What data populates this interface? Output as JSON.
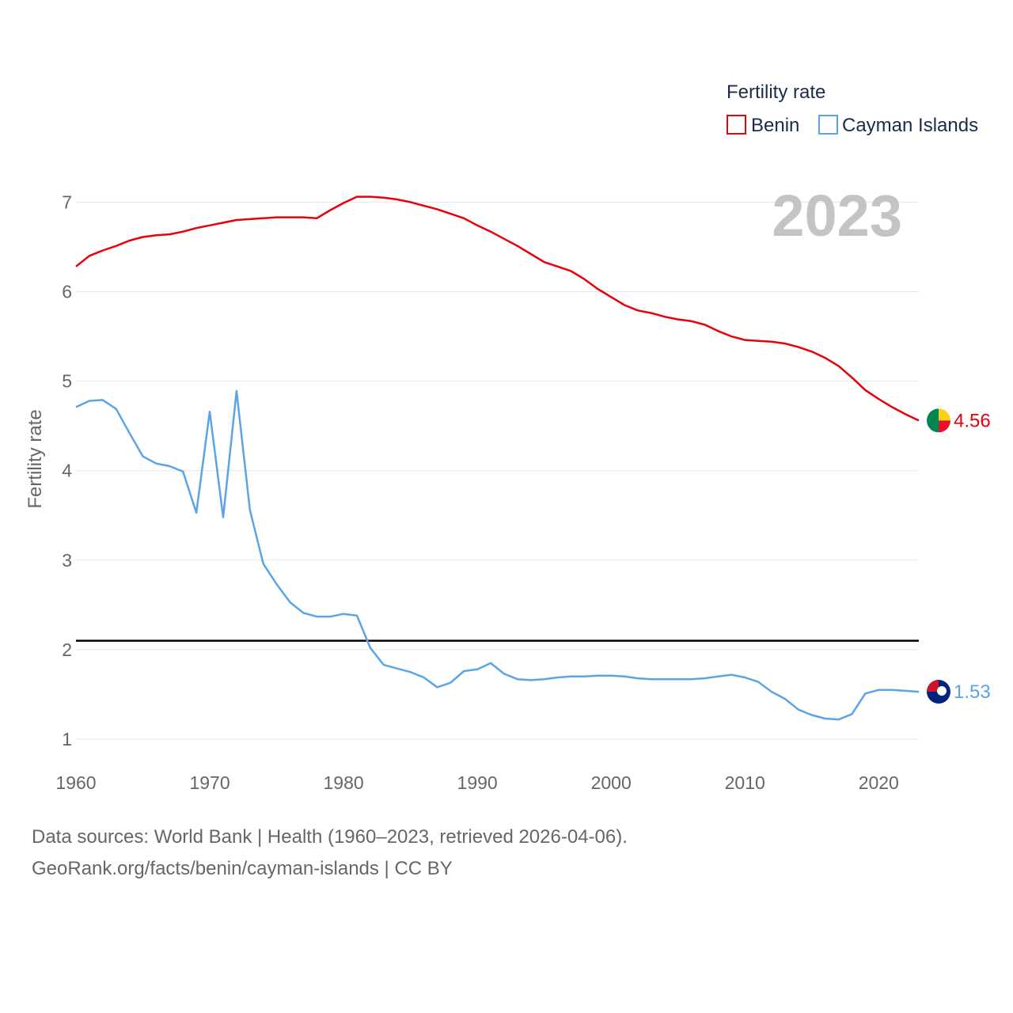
{
  "chart_data": {
    "type": "line",
    "ylabel": "Fertility rate",
    "legend_title": "Fertility rate",
    "year_label": "2023",
    "x_ticks": [
      "1960",
      "1970",
      "1980",
      "1990",
      "2000",
      "2010",
      "2020"
    ],
    "y_ticks": [
      "1",
      "2",
      "3",
      "4",
      "5",
      "6",
      "7"
    ],
    "xlim": [
      1960,
      2023
    ],
    "ylim": [
      0.9,
      7.3
    ],
    "reference_line": 2.1,
    "x": [
      1960,
      1961,
      1962,
      1963,
      1964,
      1965,
      1966,
      1967,
      1968,
      1969,
      1970,
      1971,
      1972,
      1973,
      1974,
      1975,
      1976,
      1977,
      1978,
      1979,
      1980,
      1981,
      1982,
      1983,
      1984,
      1985,
      1986,
      1987,
      1988,
      1989,
      1990,
      1991,
      1992,
      1993,
      1994,
      1995,
      1996,
      1997,
      1998,
      1999,
      2000,
      2001,
      2002,
      2003,
      2004,
      2005,
      2006,
      2007,
      2008,
      2009,
      2010,
      2011,
      2012,
      2013,
      2014,
      2015,
      2016,
      2017,
      2018,
      2019,
      2020,
      2021,
      2022,
      2023
    ],
    "series": [
      {
        "name": "Benin",
        "color": "#e8000b",
        "end_label": "4.56",
        "values": [
          6.28,
          6.4,
          6.46,
          6.51,
          6.57,
          6.61,
          6.63,
          6.64,
          6.67,
          6.71,
          6.74,
          6.77,
          6.8,
          6.81,
          6.82,
          6.83,
          6.83,
          6.83,
          6.82,
          6.91,
          6.99,
          7.06,
          7.06,
          7.05,
          7.03,
          7.0,
          6.96,
          6.92,
          6.87,
          6.82,
          6.74,
          6.67,
          6.59,
          6.51,
          6.42,
          6.33,
          6.28,
          6.23,
          6.14,
          6.03,
          5.94,
          5.85,
          5.79,
          5.76,
          5.72,
          5.69,
          5.67,
          5.63,
          5.56,
          5.5,
          5.46,
          5.45,
          5.44,
          5.42,
          5.38,
          5.33,
          5.26,
          5.17,
          5.04,
          4.9,
          4.8,
          4.71,
          4.63,
          4.56
        ]
      },
      {
        "name": "Cayman Islands",
        "color": "#5ba4e5",
        "end_label": "1.53",
        "values": [
          4.71,
          4.78,
          4.79,
          4.69,
          4.42,
          4.16,
          4.08,
          4.05,
          3.99,
          3.53,
          4.66,
          3.48,
          4.89,
          3.56,
          2.96,
          2.73,
          2.53,
          2.41,
          2.37,
          2.37,
          2.4,
          2.38,
          2.02,
          1.83,
          1.79,
          1.75,
          1.69,
          1.58,
          1.63,
          1.76,
          1.78,
          1.85,
          1.73,
          1.67,
          1.66,
          1.67,
          1.69,
          1.7,
          1.7,
          1.71,
          1.71,
          1.7,
          1.68,
          1.67,
          1.67,
          1.67,
          1.67,
          1.68,
          1.7,
          1.72,
          1.69,
          1.64,
          1.53,
          1.45,
          1.33,
          1.27,
          1.23,
          1.22,
          1.28,
          1.51,
          1.55,
          1.55,
          1.54,
          1.53
        ]
      }
    ]
  },
  "footer": {
    "line1": "Data sources: World Bank | Health (1960–2023, retrieved 2026-04-06).",
    "line2": "GeoRank.org/facts/benin/cayman-islands | CC BY"
  },
  "colors": {
    "benin_flag": [
      "#008751",
      "#fcd116",
      "#e8112d"
    ],
    "cayman_flag": [
      "#00247d",
      "#cf142b",
      "#ffffff"
    ]
  }
}
